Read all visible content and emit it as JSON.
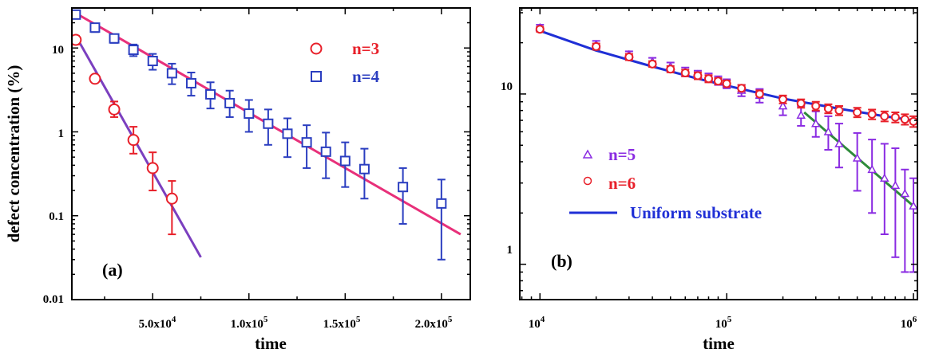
{
  "chart_data": [
    {
      "type": "scatter",
      "panel_label": "(a)",
      "xlabel": "time",
      "ylabel": "defect concentration (%)",
      "xscale": "linear",
      "yscale": "log",
      "xlim": [
        8000,
        215000
      ],
      "ylim": [
        0.01,
        30
      ],
      "xticks": [
        {
          "value": 50000,
          "mantissa": "5.0x10",
          "exp": "4"
        },
        {
          "value": 100000,
          "mantissa": "1.0x10",
          "exp": "5"
        },
        {
          "value": 150000,
          "mantissa": "1.5x10",
          "exp": "5"
        },
        {
          "value": 200000,
          "mantissa": "2.0x10",
          "exp": "5"
        }
      ],
      "yticks": [
        {
          "value": 0.01,
          "label": "0.01"
        },
        {
          "value": 0.1,
          "label": "0.1"
        },
        {
          "value": 1,
          "label": "1"
        },
        {
          "value": 10,
          "label": "10"
        }
      ],
      "legend_position": "top-right",
      "series": [
        {
          "name": "n=3",
          "marker": "circle",
          "color": "#e8202a",
          "x": [
            10000,
            20000,
            30000,
            40000,
            50000,
            60000
          ],
          "y": [
            12.5,
            4.3,
            1.85,
            0.8,
            0.37,
            0.16
          ],
          "err_low": [
            1.5,
            0.4,
            0.35,
            0.25,
            0.17,
            0.1
          ],
          "err_high": [
            1.5,
            0.4,
            0.45,
            0.35,
            0.2,
            0.1
          ]
        },
        {
          "name": "n=4",
          "marker": "square",
          "color": "#2b3ec0",
          "x": [
            10000,
            20000,
            30000,
            40000,
            50000,
            60000,
            70000,
            80000,
            90000,
            100000,
            110000,
            120000,
            130000,
            140000,
            150000,
            160000,
            180000,
            200000
          ],
          "y": [
            25,
            17.5,
            13,
            9.5,
            7,
            5,
            3.8,
            2.8,
            2.2,
            1.65,
            1.25,
            0.95,
            0.75,
            0.58,
            0.45,
            0.36,
            0.22,
            0.14
          ],
          "err_low": [
            2,
            2,
            1.5,
            1.5,
            1.5,
            1.3,
            1.1,
            0.9,
            0.7,
            0.65,
            0.55,
            0.45,
            0.38,
            0.3,
            0.23,
            0.2,
            0.14,
            0.11
          ],
          "err_high": [
            2,
            2,
            1.5,
            1.5,
            1.5,
            1.5,
            1.3,
            1.1,
            0.9,
            0.75,
            0.6,
            0.5,
            0.45,
            0.4,
            0.3,
            0.27,
            0.15,
            0.13
          ]
        }
      ],
      "fits": [
        {
          "color": "#7b3fbf",
          "x": [
            10000,
            75000
          ],
          "y": [
            14,
            0.032
          ]
        },
        {
          "color": "#e8307a",
          "x": [
            10000,
            210000
          ],
          "y": [
            26,
            0.06
          ]
        }
      ]
    },
    {
      "type": "scatter",
      "panel_label": "(b)",
      "xlabel": "time",
      "ylabel": "",
      "xscale": "log",
      "yscale": "log",
      "xlim": [
        7800,
        1050000
      ],
      "ylim": [
        0.62,
        32
      ],
      "xticks": [
        {
          "value": 10000,
          "mantissa": "10",
          "exp": "4"
        },
        {
          "value": 100000,
          "mantissa": "10",
          "exp": "5"
        },
        {
          "value": 1000000,
          "mantissa": "10",
          "exp": "6"
        }
      ],
      "yticks": [
        {
          "value": 1,
          "label": "1"
        },
        {
          "value": 10,
          "label": "10"
        }
      ],
      "legend_position": "bottom-left",
      "legend_line_label": "Uniform substrate",
      "series": [
        {
          "name": "n=5",
          "marker": "triangle",
          "color": "#8a2be2",
          "x": [
            10000,
            20000,
            30000,
            40000,
            50000,
            60000,
            70000,
            80000,
            90000,
            100000,
            120000,
            150000,
            200000,
            250000,
            300000,
            350000,
            400000,
            500000,
            600000,
            700000,
            800000,
            900000,
            1000000
          ],
          "y": [
            24.5,
            19.5,
            17,
            15.5,
            14.5,
            13.5,
            13,
            12.5,
            12,
            11.5,
            10.5,
            9.8,
            8.5,
            7.5,
            6.7,
            6.0,
            5.1,
            4.2,
            3.6,
            3.2,
            2.9,
            2.6,
            2.2
          ],
          "err_low": [
            1,
            1,
            0.8,
            0.8,
            0.8,
            0.8,
            0.7,
            0.7,
            0.7,
            0.7,
            0.8,
            0.9,
            1.0,
            1.0,
            1.1,
            1.3,
            1.4,
            1.5,
            1.6,
            1.7,
            1.8,
            1.7,
            1.3
          ],
          "err_high": [
            1,
            1,
            0.8,
            0.8,
            0.8,
            0.8,
            0.7,
            0.7,
            0.7,
            0.7,
            0.8,
            0.9,
            1.0,
            1.0,
            1.2,
            1.4,
            1.6,
            1.7,
            1.8,
            1.9,
            1.9,
            1.0,
            1.0
          ]
        },
        {
          "name": "n=6",
          "marker": "circle",
          "color": "#e8202a",
          "x": [
            10000,
            20000,
            30000,
            40000,
            50000,
            60000,
            70000,
            80000,
            90000,
            100000,
            120000,
            150000,
            200000,
            250000,
            300000,
            350000,
            400000,
            500000,
            600000,
            700000,
            800000,
            900000,
            1000000
          ],
          "y": [
            24,
            19,
            16.5,
            15,
            14,
            13.3,
            12.8,
            12.3,
            11.9,
            11.5,
            10.8,
            10.0,
            9.3,
            8.8,
            8.5,
            8.2,
            8.0,
            7.8,
            7.6,
            7.4,
            7.3,
            7.1,
            6.9
          ],
          "err_low": [
            0.8,
            0.8,
            0.7,
            0.6,
            0.6,
            0.6,
            0.6,
            0.6,
            0.5,
            0.5,
            0.5,
            0.5,
            0.5,
            0.5,
            0.5,
            0.5,
            0.5,
            0.5,
            0.5,
            0.5,
            0.5,
            0.5,
            0.5
          ],
          "err_high": [
            0.8,
            0.8,
            0.7,
            0.6,
            0.6,
            0.6,
            0.6,
            0.6,
            0.5,
            0.5,
            0.5,
            0.5,
            0.5,
            0.5,
            0.5,
            0.5,
            0.5,
            0.5,
            0.5,
            0.5,
            0.5,
            0.5,
            0.5
          ]
        }
      ],
      "fits": [
        {
          "name": "Uniform substrate",
          "color": "#1f2fd6",
          "x": [
            10000,
            20000,
            40000,
            70000,
            100000,
            200000,
            400000,
            700000,
            1000000
          ],
          "y": [
            23.5,
            18.0,
            14.5,
            12.3,
            11.2,
            9.4,
            8.2,
            7.4,
            7.0
          ]
        },
        {
          "color": "#2e8b3a",
          "x": [
            260000,
            1000000
          ],
          "y": [
            7.8,
            2.2
          ]
        }
      ]
    }
  ]
}
